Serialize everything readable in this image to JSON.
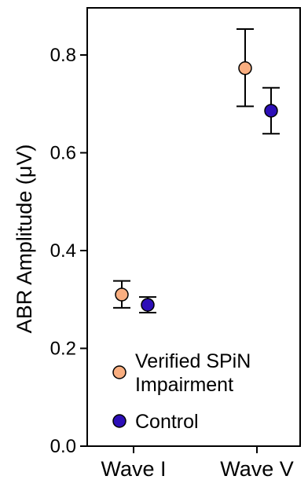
{
  "chart_data": {
    "type": "scatter",
    "title": "",
    "xlabel": "",
    "ylabel": "ABR Amplitude (μV)",
    "categories": [
      "Wave I",
      "Wave V"
    ],
    "ylim": [
      0.0,
      0.9
    ],
    "yticks": [
      0.0,
      0.2,
      0.4,
      0.6,
      0.8
    ],
    "ytick_labels": [
      "0.0",
      "0.2",
      "0.4",
      "0.6",
      "0.8"
    ],
    "grid": false,
    "legend_position": "bottom-left",
    "series": [
      {
        "name": "Verified SPiN Impairment",
        "color": "#F9AE80",
        "values": [
          0.31,
          0.773
        ],
        "error_low": [
          0.283,
          0.695
        ],
        "error_high": [
          0.338,
          0.853
        ]
      },
      {
        "name": "Control",
        "color": "#2D0FB8",
        "values": [
          0.289,
          0.686
        ],
        "error_low": [
          0.273,
          0.639
        ],
        "error_high": [
          0.305,
          0.733
        ]
      }
    ],
    "legend": {
      "entries": [
        {
          "lines": [
            "Verified SPiN",
            "Impairment"
          ],
          "color": "#F9AE80"
        },
        {
          "lines": [
            "Control"
          ],
          "color": "#2D0FB8"
        }
      ]
    }
  }
}
